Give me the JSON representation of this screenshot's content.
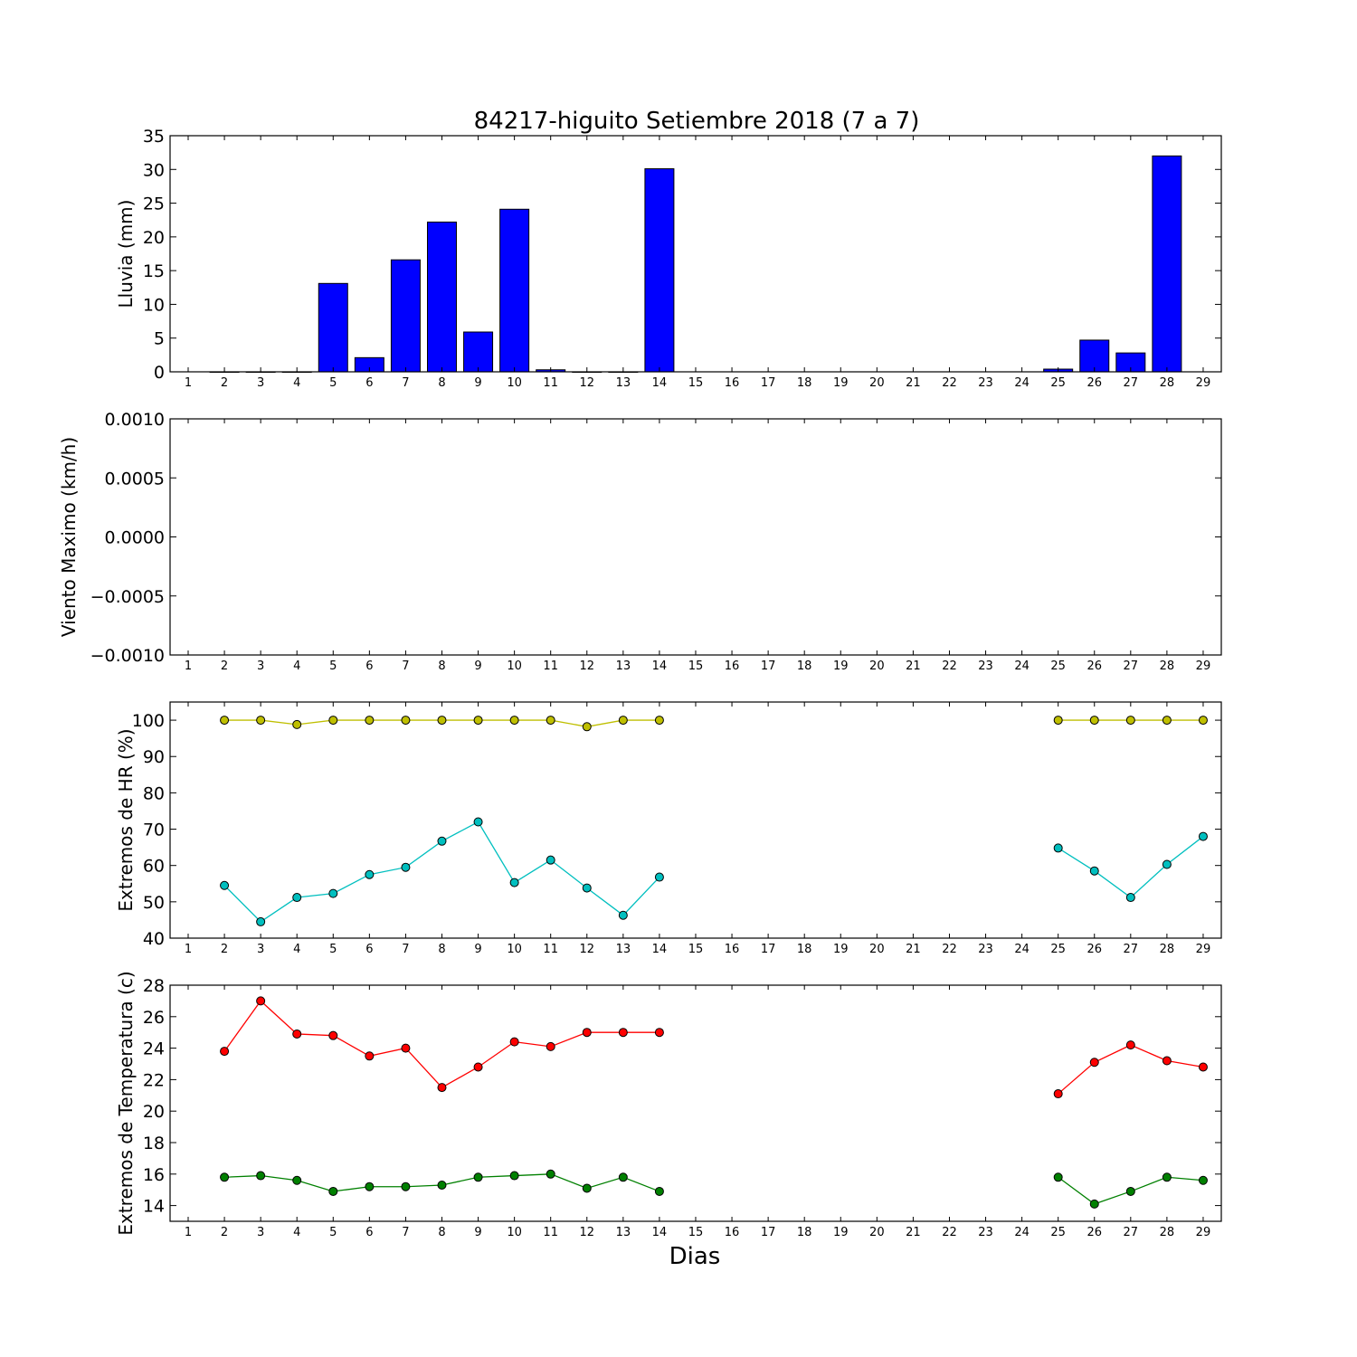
{
  "figure": {
    "title": "84217-higuito Setiembre 2018  (7 a 7)",
    "xlabel": "Dias"
  },
  "days": [
    1,
    2,
    3,
    4,
    5,
    6,
    7,
    8,
    9,
    10,
    11,
    12,
    13,
    14,
    15,
    16,
    17,
    18,
    19,
    20,
    21,
    22,
    23,
    24,
    25,
    26,
    27,
    28,
    29
  ],
  "chart_data": [
    {
      "type": "bar",
      "ylabel": "Lluvia (mm)",
      "ylim": [
        0,
        35
      ],
      "yticks": [
        "0",
        "5",
        "10",
        "15",
        "20",
        "25",
        "30",
        "35"
      ],
      "color": "#0000ff",
      "x": [
        2,
        3,
        4,
        5,
        6,
        7,
        8,
        9,
        10,
        11,
        12,
        13,
        14,
        25,
        26,
        27,
        28
      ],
      "values": [
        0,
        0,
        0,
        13.1,
        2.1,
        16.6,
        22.2,
        5.9,
        24.1,
        0.3,
        0,
        0,
        30.1,
        0.4,
        4.7,
        2.8,
        32.0
      ]
    },
    {
      "type": "line",
      "ylabel": "Viento Maximo (km/h)",
      "ylim": [
        -0.001,
        0.001
      ],
      "yticks": [
        "−0.0010",
        "−0.0005",
        "0.0000",
        "0.0005",
        "0.0010"
      ],
      "series": []
    },
    {
      "type": "line",
      "ylabel": "Extremos de HR (%)",
      "ylim": [
        40,
        105
      ],
      "yticks": [
        "40",
        "50",
        "60",
        "70",
        "80",
        "90",
        "100"
      ],
      "series": [
        {
          "color": "#bfbf00",
          "x": [
            2,
            3,
            4,
            5,
            6,
            7,
            8,
            9,
            10,
            11,
            12,
            13,
            14,
            25,
            26,
            27,
            28,
            29
          ],
          "values": [
            100,
            100,
            98.8,
            100,
            100,
            100,
            100,
            100,
            100,
            100,
            98.2,
            100,
            100,
            100,
            100,
            100,
            100,
            100
          ]
        },
        {
          "color": "#00bfbf",
          "x": [
            2,
            3,
            4,
            5,
            6,
            7,
            8,
            9,
            10,
            11,
            12,
            13,
            14,
            25,
            26,
            27,
            28,
            29
          ],
          "values": [
            54.5,
            44.5,
            51.2,
            52.3,
            57.5,
            59.5,
            66.7,
            72.0,
            55.3,
            61.5,
            53.8,
            46.3,
            56.8,
            64.8,
            58.5,
            51.2,
            60.3,
            68.0
          ]
        }
      ]
    },
    {
      "type": "line",
      "ylabel": "Extremos de Temperatura (c)",
      "ylim": [
        13,
        28
      ],
      "yticks": [
        "14",
        "16",
        "18",
        "20",
        "22",
        "24",
        "26",
        "28"
      ],
      "series": [
        {
          "color": "#ff0000",
          "x": [
            2,
            3,
            4,
            5,
            6,
            7,
            8,
            9,
            10,
            11,
            12,
            13,
            14,
            25,
            26,
            27,
            28,
            29
          ],
          "values": [
            23.8,
            27.0,
            24.9,
            24.8,
            23.5,
            24.0,
            21.5,
            22.8,
            24.4,
            24.1,
            25.0,
            25.0,
            25.0,
            21.1,
            23.1,
            24.2,
            23.2,
            22.8
          ]
        },
        {
          "color": "#008000",
          "x": [
            2,
            3,
            4,
            5,
            6,
            7,
            8,
            9,
            10,
            11,
            12,
            13,
            14,
            25,
            26,
            27,
            28,
            29
          ],
          "values": [
            15.8,
            15.9,
            15.6,
            14.9,
            15.2,
            15.2,
            15.3,
            15.8,
            15.9,
            16.0,
            15.1,
            15.8,
            14.9,
            15.8,
            14.1,
            14.9,
            15.8,
            15.6
          ]
        }
      ]
    }
  ]
}
